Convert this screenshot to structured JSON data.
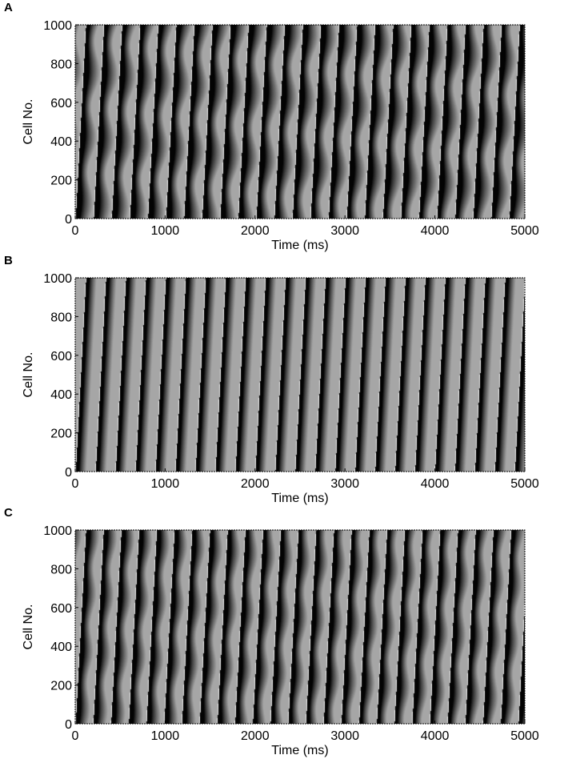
{
  "figure": {
    "background": "#ffffff",
    "band_dark": "#000000",
    "band_light": "#a6a6a6"
  },
  "chart_data": [
    {
      "panel": "A",
      "type": "heatmap",
      "xlabel": "Time (ms)",
      "ylabel": "Cell No.",
      "xlim": [
        0,
        5000
      ],
      "ylim": [
        0,
        1000
      ],
      "xticks": [
        0,
        1000,
        2000,
        3000,
        4000,
        5000
      ],
      "yticks": [
        0,
        200,
        400,
        600,
        800,
        1000
      ],
      "wave_period_ms": 201,
      "wave_slope_ms_per_cell": 0.115,
      "modulation_period_cells": 340,
      "modulation_strength": 0.7
    },
    {
      "panel": "B",
      "type": "heatmap",
      "xlabel": "Time (ms)",
      "ylabel": "Cell No.",
      "xlim": [
        0,
        5000
      ],
      "ylim": [
        0,
        1000
      ],
      "xticks": [
        0,
        1000,
        2000,
        3000,
        4000,
        5000
      ],
      "yticks": [
        0,
        200,
        400,
        600,
        800,
        1000
      ],
      "wave_period_ms": 222,
      "wave_slope_ms_per_cell": 0.115,
      "modulation_period_cells": 340,
      "modulation_strength": 0.0
    },
    {
      "panel": "C",
      "type": "heatmap",
      "xlabel": "Time (ms)",
      "ylabel": "Cell No.",
      "xlim": [
        0,
        5000
      ],
      "ylim": [
        0,
        1000
      ],
      "xticks": [
        0,
        1000,
        2000,
        3000,
        4000,
        5000
      ],
      "yticks": [
        0,
        200,
        400,
        600,
        800,
        1000
      ],
      "wave_period_ms": 197,
      "wave_slope_ms_per_cell": 0.115,
      "modulation_period_cells": 300,
      "modulation_strength": 0.45
    }
  ]
}
